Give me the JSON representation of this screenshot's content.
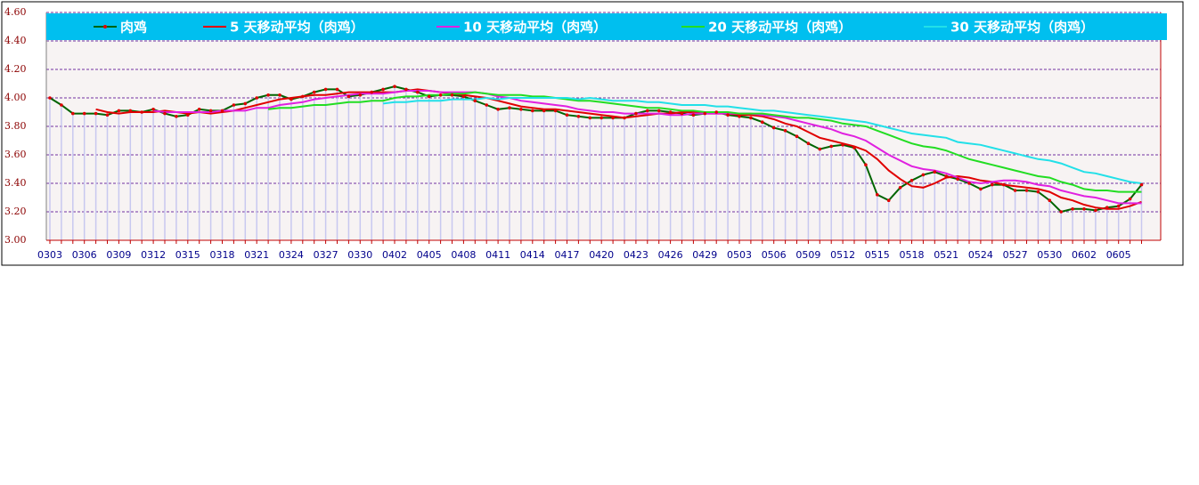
{
  "chart_data": {
    "type": "line",
    "categories": [
      "0303",
      null,
      null,
      "0306",
      null,
      null,
      "0309",
      null,
      null,
      "0312",
      null,
      null,
      "0315",
      null,
      null,
      "0318",
      null,
      null,
      "0321",
      null,
      null,
      "0324",
      null,
      null,
      "0327",
      null,
      null,
      "0330",
      null,
      null,
      "0402",
      null,
      null,
      "0405",
      null,
      null,
      "0408",
      null,
      null,
      "0411",
      null,
      null,
      "0414",
      null,
      null,
      "0417",
      null,
      null,
      "0420",
      null,
      null,
      "0423",
      null,
      null,
      "0426",
      null,
      null,
      "0429",
      null,
      null,
      "0503",
      null,
      null,
      "0506",
      null,
      null,
      "0509",
      null,
      null,
      "0512",
      null,
      null,
      "0515",
      null,
      null,
      "0518",
      null,
      null,
      "0521",
      null,
      null,
      "0524",
      null,
      null,
      "0527",
      null,
      null,
      "0530",
      null,
      null,
      "0602",
      null,
      null,
      "0605",
      null,
      null
    ],
    "series": [
      {
        "name": "肉鸡",
        "color": "#006400",
        "marker_color": "#e00000",
        "values": [
          4.0,
          3.95,
          3.89,
          3.89,
          3.89,
          3.88,
          3.91,
          3.91,
          3.9,
          3.92,
          3.89,
          3.87,
          3.88,
          3.92,
          3.91,
          3.91,
          3.95,
          3.96,
          4.0,
          4.02,
          4.02,
          3.99,
          4.01,
          4.04,
          4.06,
          4.06,
          4.01,
          4.02,
          4.04,
          4.06,
          4.08,
          4.06,
          4.04,
          4.01,
          4.02,
          4.02,
          4.01,
          3.98,
          3.95,
          3.92,
          3.93,
          3.92,
          3.91,
          3.91,
          3.91,
          3.88,
          3.87,
          3.86,
          3.86,
          3.86,
          3.86,
          3.89,
          3.91,
          3.91,
          3.9,
          3.89,
          3.88,
          3.89,
          3.9,
          3.88,
          3.87,
          3.86,
          3.83,
          3.79,
          3.77,
          3.73,
          3.68,
          3.64,
          3.66,
          3.67,
          3.65,
          3.53,
          3.32,
          3.28,
          3.37,
          3.42,
          3.46,
          3.48,
          3.45,
          3.43,
          3.4,
          3.36,
          3.39,
          3.39,
          3.35,
          3.35,
          3.34,
          3.28,
          3.2,
          3.22,
          3.22,
          3.21,
          3.23,
          3.24,
          3.29,
          3.39
        ]
      },
      {
        "name": "5 天移动平均（肉鸡）",
        "color": "#e00000",
        "values": [
          null,
          null,
          null,
          null,
          3.92,
          3.9,
          3.89,
          3.9,
          3.9,
          3.9,
          3.91,
          3.9,
          3.89,
          3.9,
          3.89,
          3.9,
          3.91,
          3.93,
          3.95,
          3.97,
          3.99,
          4.0,
          4.01,
          4.02,
          4.02,
          4.03,
          4.04,
          4.04,
          4.04,
          4.04,
          4.04,
          4.05,
          4.06,
          4.05,
          4.04,
          4.03,
          4.02,
          4.01,
          4.0,
          3.98,
          3.96,
          3.94,
          3.93,
          3.92,
          3.92,
          3.91,
          3.9,
          3.89,
          3.88,
          3.87,
          3.86,
          3.87,
          3.88,
          3.89,
          3.89,
          3.9,
          3.9,
          3.89,
          3.89,
          3.89,
          3.88,
          3.88,
          3.87,
          3.85,
          3.82,
          3.8,
          3.76,
          3.72,
          3.7,
          3.68,
          3.66,
          3.63,
          3.57,
          3.49,
          3.43,
          3.38,
          3.37,
          3.4,
          3.44,
          3.45,
          3.44,
          3.42,
          3.41,
          3.39,
          3.38,
          3.37,
          3.36,
          3.34,
          3.3,
          3.28,
          3.25,
          3.23,
          3.22,
          3.22,
          3.24,
          3.27
        ]
      },
      {
        "name": "10 天移动平均（肉鸡）",
        "color": "#e020e0",
        "values": [
          null,
          null,
          null,
          null,
          null,
          null,
          null,
          null,
          null,
          3.91,
          3.9,
          3.9,
          3.9,
          3.9,
          3.9,
          3.91,
          3.91,
          3.91,
          3.93,
          3.93,
          3.95,
          3.96,
          3.97,
          3.99,
          4.0,
          4.01,
          4.02,
          4.03,
          4.03,
          4.03,
          4.04,
          4.05,
          4.05,
          4.05,
          4.04,
          4.04,
          4.04,
          4.04,
          4.03,
          4.01,
          4.0,
          3.98,
          3.97,
          3.96,
          3.95,
          3.94,
          3.92,
          3.91,
          3.9,
          3.9,
          3.89,
          3.89,
          3.89,
          3.89,
          3.88,
          3.88,
          3.89,
          3.89,
          3.89,
          3.89,
          3.89,
          3.89,
          3.88,
          3.87,
          3.86,
          3.84,
          3.82,
          3.8,
          3.78,
          3.75,
          3.73,
          3.7,
          3.65,
          3.6,
          3.56,
          3.52,
          3.5,
          3.49,
          3.47,
          3.44,
          3.41,
          3.4,
          3.41,
          3.42,
          3.42,
          3.41,
          3.39,
          3.38,
          3.35,
          3.33,
          3.31,
          3.3,
          3.28,
          3.26,
          3.26,
          3.26
        ]
      },
      {
        "name": "20 天移动平均（肉鸡）",
        "color": "#22dd22",
        "values": [
          null,
          null,
          null,
          null,
          null,
          null,
          null,
          null,
          null,
          null,
          null,
          null,
          null,
          null,
          null,
          null,
          null,
          null,
          null,
          3.92,
          3.93,
          3.93,
          3.94,
          3.95,
          3.95,
          3.96,
          3.97,
          3.97,
          3.98,
          3.98,
          4.0,
          4.01,
          4.01,
          4.02,
          4.02,
          4.03,
          4.03,
          4.04,
          4.03,
          4.02,
          4.02,
          4.02,
          4.01,
          4.01,
          4.0,
          3.99,
          3.98,
          3.98,
          3.97,
          3.96,
          3.95,
          3.94,
          3.93,
          3.93,
          3.92,
          3.91,
          3.91,
          3.9,
          3.9,
          3.9,
          3.89,
          3.89,
          3.89,
          3.88,
          3.87,
          3.86,
          3.86,
          3.85,
          3.84,
          3.82,
          3.81,
          3.8,
          3.77,
          3.74,
          3.71,
          3.68,
          3.66,
          3.65,
          3.63,
          3.6,
          3.57,
          3.55,
          3.53,
          3.51,
          3.49,
          3.47,
          3.45,
          3.44,
          3.41,
          3.39,
          3.36,
          3.35,
          3.35,
          3.34,
          3.34,
          3.34
        ]
      },
      {
        "name": "30 天移动平均（肉鸡）",
        "color": "#22e0e8",
        "values": [
          null,
          null,
          null,
          null,
          null,
          null,
          null,
          null,
          null,
          null,
          null,
          null,
          null,
          null,
          null,
          null,
          null,
          null,
          null,
          null,
          null,
          null,
          null,
          null,
          null,
          null,
          null,
          null,
          null,
          3.96,
          3.97,
          3.97,
          3.98,
          3.98,
          3.98,
          3.99,
          3.99,
          3.99,
          4.0,
          3.99,
          4.0,
          4.0,
          4.0,
          4.0,
          4.0,
          4.0,
          3.99,
          4.0,
          3.99,
          3.98,
          3.98,
          3.98,
          3.97,
          3.97,
          3.96,
          3.95,
          3.95,
          3.95,
          3.94,
          3.94,
          3.93,
          3.92,
          3.91,
          3.91,
          3.9,
          3.89,
          3.88,
          3.87,
          3.86,
          3.85,
          3.84,
          3.83,
          3.81,
          3.79,
          3.77,
          3.75,
          3.74,
          3.73,
          3.72,
          3.69,
          3.68,
          3.67,
          3.65,
          3.63,
          3.61,
          3.59,
          3.57,
          3.56,
          3.54,
          3.51,
          3.48,
          3.47,
          3.45,
          3.43,
          3.41,
          3.4
        ]
      }
    ],
    "ylim": [
      3.0,
      4.6
    ],
    "yticks": [
      {
        "value": 3.0,
        "label": "3.00"
      },
      {
        "value": 3.2,
        "label": "3.20"
      },
      {
        "value": 3.4,
        "label": "3.40"
      },
      {
        "value": 3.6,
        "label": "3.60"
      },
      {
        "value": 3.8,
        "label": "3.80"
      },
      {
        "value": 4.0,
        "label": "4.00"
      },
      {
        "value": 4.2,
        "label": "4.20"
      },
      {
        "value": 4.4,
        "label": "4.40"
      },
      {
        "value": 4.6,
        "label": "4.60"
      }
    ],
    "grid": true,
    "legend": "top",
    "legend_color": "#00bfef",
    "drop_color": "#c8c8f0"
  }
}
